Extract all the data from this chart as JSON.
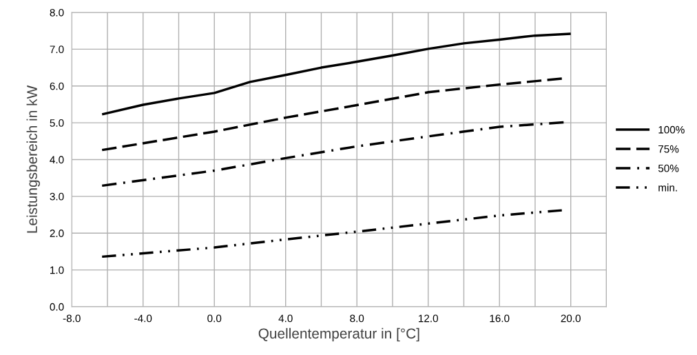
{
  "chart_data": {
    "type": "line",
    "xlabel": "Quellentemperatur in [°C]",
    "ylabel": "Leistungsbereich in kW",
    "xlim": [
      -8,
      22
    ],
    "xticks": [
      {
        "value": -8,
        "label": "-8.0"
      },
      {
        "value": -6,
        "label": null
      },
      {
        "value": -4,
        "label": "-4.0"
      },
      {
        "value": -2,
        "label": null
      },
      {
        "value": 0,
        "label": "0.0"
      },
      {
        "value": 2,
        "label": null
      },
      {
        "value": 4,
        "label": "4.0"
      },
      {
        "value": 6,
        "label": null
      },
      {
        "value": 8,
        "label": "8.0"
      },
      {
        "value": 10,
        "label": null
      },
      {
        "value": 12,
        "label": "12.0"
      },
      {
        "value": 14,
        "label": null
      },
      {
        "value": 16,
        "label": "16.0"
      },
      {
        "value": 18,
        "label": null
      },
      {
        "value": 20,
        "label": "20.0"
      },
      {
        "value": 22,
        "label": null
      }
    ],
    "ylim": [
      0,
      8
    ],
    "yticks": [
      {
        "value": 0,
        "label": "0.0"
      },
      {
        "value": 1,
        "label": "1.0"
      },
      {
        "value": 2,
        "label": "2.0"
      },
      {
        "value": 3,
        "label": "3.0"
      },
      {
        "value": 4,
        "label": "4.0"
      },
      {
        "value": 5,
        "label": "5.0"
      },
      {
        "value": 6,
        "label": "6.0"
      },
      {
        "value": 7,
        "label": "7.0"
      },
      {
        "value": 8,
        "label": "8.0"
      }
    ],
    "grid": true,
    "legend": "right",
    "marker": "none",
    "series": [
      {
        "name": "100%",
        "color": "#000000",
        "line_style": "solid",
        "x": [
          -6.3,
          -4,
          -2,
          0,
          2,
          4,
          6,
          8,
          10,
          12,
          14,
          16,
          18,
          20
        ],
        "values": [
          5.23,
          5.49,
          5.66,
          5.81,
          6.11,
          6.3,
          6.5,
          6.66,
          6.83,
          7.01,
          7.16,
          7.26,
          7.37,
          7.42
        ]
      },
      {
        "name": "75%",
        "color": "#000000",
        "line_style": "dashed",
        "x": [
          -6.3,
          0,
          4,
          8,
          12,
          16,
          19.5
        ],
        "values": [
          4.26,
          4.76,
          5.14,
          5.48,
          5.83,
          6.04,
          6.2
        ]
      },
      {
        "name": "50%",
        "color": "#000000",
        "line_style": "dashdot",
        "x": [
          -6.3,
          0,
          4,
          8,
          12,
          16,
          19.6
        ],
        "values": [
          3.29,
          3.7,
          4.04,
          4.36,
          4.63,
          4.89,
          5.01
        ]
      },
      {
        "name": "min.",
        "color": "#000000",
        "line_style": "dashdotdot",
        "x": [
          -6.3,
          0,
          4,
          8,
          12,
          16,
          19.5
        ],
        "values": [
          1.36,
          1.61,
          1.83,
          2.04,
          2.26,
          2.48,
          2.62
        ]
      }
    ]
  }
}
